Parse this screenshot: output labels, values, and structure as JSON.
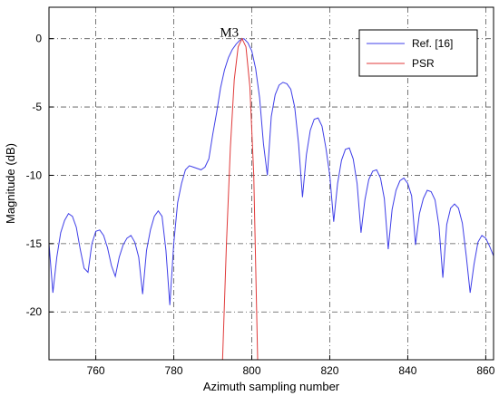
{
  "chart_data": {
    "type": "line",
    "title": "",
    "xlabel": "Azimuth sampling number",
    "ylabel": "Magnitude (dB)",
    "xlim": [
      748,
      862
    ],
    "ylim": [
      -23.5,
      2.3
    ],
    "xticks": [
      760,
      780,
      800,
      820,
      840,
      860
    ],
    "yticks": [
      0,
      -5,
      -10,
      -15,
      -20
    ],
    "grid": true,
    "legend_position": "top-right",
    "annotation": {
      "text": "M3",
      "x": 797.5,
      "y": 0
    },
    "colors": {
      "Ref. [16]": "#3f3fe8",
      "PSR": "#e03a3a"
    },
    "series": [
      {
        "name": "Ref. [16]",
        "x": [
          748,
          749,
          750,
          751,
          752,
          753,
          754,
          755,
          756,
          757,
          758,
          759,
          760,
          761,
          762,
          763,
          764,
          765,
          766,
          767,
          768,
          769,
          770,
          771,
          772,
          773,
          774,
          775,
          776,
          777,
          778,
          779,
          780,
          781,
          782,
          783,
          784,
          785,
          786,
          787,
          788,
          789,
          790,
          791,
          792,
          793,
          794,
          795,
          796,
          797,
          798,
          799,
          800,
          801,
          802,
          803,
          804,
          805,
          806,
          807,
          808,
          809,
          810,
          811,
          812,
          813,
          814,
          815,
          816,
          817,
          818,
          819,
          820,
          821,
          822,
          823,
          824,
          825,
          826,
          827,
          828,
          829,
          830,
          831,
          832,
          833,
          834,
          835,
          836,
          837,
          838,
          839,
          840,
          841,
          842,
          843,
          844,
          845,
          846,
          847,
          848,
          849,
          850,
          851,
          852,
          853,
          854,
          855,
          856,
          857,
          858,
          859,
          860,
          861,
          862
        ],
        "y": [
          -15.0,
          -18.6,
          -16.0,
          -14.2,
          -13.3,
          -12.8,
          -13.0,
          -13.8,
          -15.4,
          -16.8,
          -17.1,
          -15.0,
          -14.1,
          -14.0,
          -14.4,
          -15.3,
          -16.6,
          -17.4,
          -16.0,
          -15.1,
          -14.6,
          -14.4,
          -14.9,
          -16.0,
          -18.7,
          -15.5,
          -14.0,
          -13.0,
          -12.6,
          -13.0,
          -15.5,
          -19.5,
          -15.0,
          -12.0,
          -10.6,
          -9.6,
          -9.3,
          -9.4,
          -9.5,
          -9.6,
          -9.4,
          -8.8,
          -7.0,
          -5.4,
          -3.6,
          -2.3,
          -1.4,
          -0.8,
          -0.4,
          -0.1,
          0.0,
          -0.3,
          -0.9,
          -2.2,
          -4.3,
          -7.7,
          -10.0,
          -5.7,
          -4.1,
          -3.4,
          -3.2,
          -3.3,
          -3.7,
          -5.0,
          -7.7,
          -11.6,
          -8.5,
          -6.7,
          -5.9,
          -5.8,
          -6.4,
          -8.0,
          -10.0,
          -13.4,
          -10.6,
          -8.9,
          -8.1,
          -8.0,
          -8.8,
          -10.6,
          -14.2,
          -11.8,
          -10.3,
          -9.7,
          -9.6,
          -10.2,
          -11.7,
          -15.4,
          -12.5,
          -11.1,
          -10.4,
          -10.2,
          -10.6,
          -11.5,
          -15.1,
          -12.8,
          -11.7,
          -11.1,
          -11.2,
          -11.8,
          -13.7,
          -17.5,
          -13.6,
          -12.4,
          -12.1,
          -12.4,
          -13.5,
          -15.9,
          -18.6,
          -16.5,
          -14.9,
          -14.4,
          -14.6,
          -15.2,
          -15.9
        ]
      },
      {
        "name": "PSR",
        "x": [
          792.5,
          793.5,
          794.5,
          795.5,
          796.5,
          797.5,
          798.5,
          799.5,
          800.5,
          801.5
        ],
        "y": [
          -23.5,
          -15.0,
          -8.0,
          -3.0,
          -0.6,
          0.0,
          -0.6,
          -3.5,
          -10.0,
          -23.5
        ]
      }
    ]
  }
}
